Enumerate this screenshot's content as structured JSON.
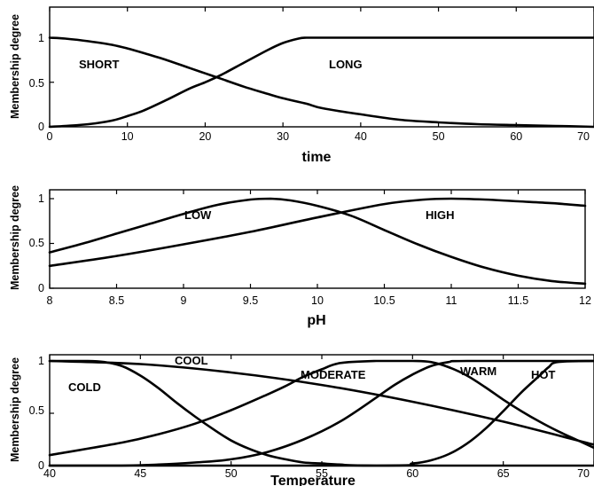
{
  "chart_data": [
    {
      "type": "line",
      "xlabel": "time",
      "ylabel": "Membership degree",
      "xlim": [
        0,
        70
      ],
      "ylim": [
        0,
        1
      ],
      "xticks": [
        "0",
        "10",
        "20",
        "30",
        "40",
        "50",
        "60",
        "70"
      ],
      "yticks": [
        "0",
        "0.5",
        "1"
      ],
      "series": [
        {
          "name": "SHORT",
          "x": [
            0,
            2,
            5,
            8,
            10,
            12,
            15,
            18,
            20,
            22,
            25,
            28,
            30,
            33,
            35,
            40,
            45,
            50,
            55,
            60,
            65,
            70
          ],
          "y": [
            1.0,
            0.99,
            0.96,
            0.92,
            0.88,
            0.83,
            0.75,
            0.66,
            0.6,
            0.54,
            0.45,
            0.37,
            0.32,
            0.26,
            0.21,
            0.14,
            0.08,
            0.05,
            0.03,
            0.02,
            0.01,
            0.0
          ]
        },
        {
          "name": "LONG",
          "x": [
            0,
            2,
            5,
            8,
            10,
            12,
            15,
            18,
            20,
            22,
            25,
            28,
            30,
            32,
            33,
            35,
            40,
            50,
            60,
            70
          ],
          "y": [
            0.0,
            0.01,
            0.03,
            0.07,
            0.12,
            0.18,
            0.3,
            0.43,
            0.5,
            0.58,
            0.72,
            0.86,
            0.94,
            0.99,
            1.0,
            1.0,
            1.0,
            1.0,
            1.0,
            1.0
          ]
        }
      ]
    },
    {
      "type": "line",
      "xlabel": "pH",
      "ylabel": "Membership degree",
      "xlim": [
        8,
        12
      ],
      "ylim": [
        0,
        1
      ],
      "xticks": [
        "8",
        "8.5",
        "9",
        "9.5",
        "10",
        "10.5",
        "11",
        "11.5",
        "12"
      ],
      "yticks": [
        "0",
        "0.5",
        "1"
      ],
      "series": [
        {
          "name": "LOW",
          "x": [
            8.0,
            8.25,
            8.5,
            8.75,
            9.0,
            9.25,
            9.5,
            9.65,
            9.8,
            10.0,
            10.25,
            10.5,
            10.75,
            11.0,
            11.25,
            11.5,
            11.75,
            12.0
          ],
          "y": [
            0.4,
            0.5,
            0.61,
            0.72,
            0.83,
            0.93,
            0.99,
            1.0,
            0.98,
            0.92,
            0.81,
            0.65,
            0.49,
            0.35,
            0.23,
            0.14,
            0.08,
            0.05
          ]
        },
        {
          "name": "HIGH",
          "x": [
            8.0,
            8.5,
            9.0,
            9.5,
            10.0,
            10.5,
            10.8,
            11.0,
            11.25,
            11.5,
            11.75,
            12.0
          ],
          "y": [
            0.25,
            0.36,
            0.49,
            0.63,
            0.79,
            0.94,
            0.99,
            1.0,
            0.99,
            0.97,
            0.95,
            0.92
          ]
        }
      ]
    },
    {
      "type": "line",
      "xlabel": "Temperature",
      "ylabel": "Membership degree",
      "xlim": [
        40,
        70
      ],
      "ylim": [
        0,
        1
      ],
      "xticks": [
        "40",
        "45",
        "50",
        "55",
        "60",
        "65",
        "70"
      ],
      "yticks": [
        "0",
        "0.5",
        "1"
      ],
      "series": [
        {
          "name": "COLD",
          "x": [
            40,
            42,
            43,
            44,
            45,
            46,
            47,
            48,
            49,
            50,
            51,
            52,
            53,
            54,
            55,
            56,
            58,
            70
          ],
          "y": [
            1.0,
            1.0,
            0.99,
            0.95,
            0.86,
            0.74,
            0.6,
            0.47,
            0.35,
            0.24,
            0.16,
            0.1,
            0.06,
            0.03,
            0.02,
            0.01,
            0.0,
            0.0
          ]
        },
        {
          "name": "COOL",
          "x": [
            40,
            45,
            50,
            55,
            60,
            65,
            70
          ],
          "y": [
            1.0,
            0.97,
            0.89,
            0.77,
            0.61,
            0.42,
            0.2
          ]
        },
        {
          "name": "MODERATE",
          "x": [
            40,
            44,
            46,
            48,
            50,
            52,
            53,
            54,
            55,
            56,
            58,
            60,
            61,
            62,
            63,
            64,
            65,
            66,
            67,
            68,
            69,
            70
          ],
          "y": [
            0.1,
            0.22,
            0.3,
            0.4,
            0.53,
            0.68,
            0.76,
            0.85,
            0.92,
            0.98,
            1.0,
            1.0,
            0.99,
            0.94,
            0.86,
            0.75,
            0.63,
            0.52,
            0.42,
            0.33,
            0.25,
            0.17
          ]
        },
        {
          "name": "WARM",
          "x": [
            40,
            44,
            46,
            48,
            50,
            52,
            54,
            56,
            58,
            59,
            60,
            61,
            62,
            63,
            70
          ],
          "y": [
            0.0,
            0.0,
            0.01,
            0.03,
            0.06,
            0.13,
            0.25,
            0.42,
            0.65,
            0.77,
            0.87,
            0.95,
            0.99,
            1.0,
            1.0
          ]
        },
        {
          "name": "HOT",
          "x": [
            40,
            58,
            60,
            61,
            62,
            63,
            64,
            65,
            66,
            67,
            67.5,
            68,
            70
          ],
          "y": [
            0.0,
            0.0,
            0.02,
            0.05,
            0.11,
            0.21,
            0.35,
            0.52,
            0.7,
            0.86,
            0.94,
            0.99,
            1.0
          ]
        }
      ]
    }
  ]
}
